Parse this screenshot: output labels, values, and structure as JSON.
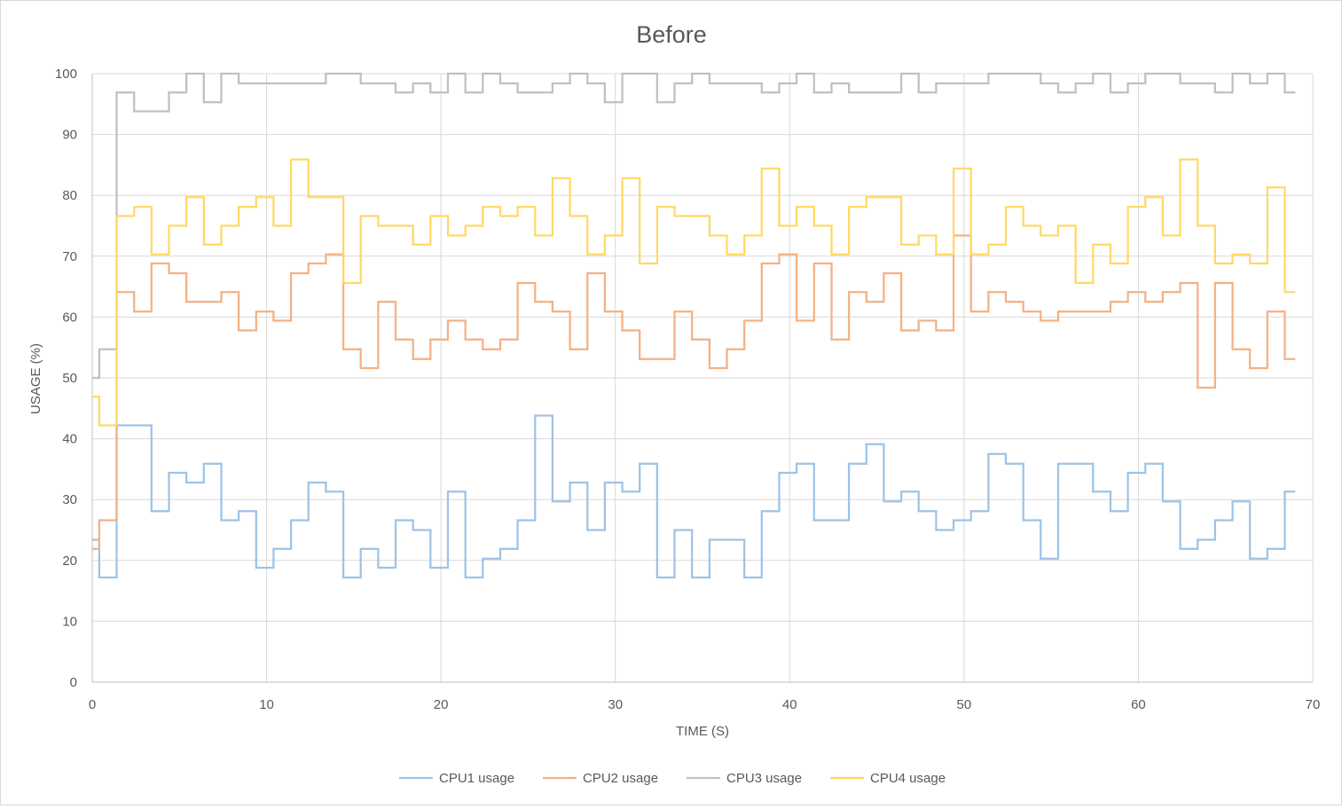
{
  "chart_data": {
    "type": "line",
    "title": "Before",
    "xlabel": "TIME (S)",
    "ylabel": "USAGE (%)",
    "xlim": [
      0,
      70
    ],
    "ylim": [
      0,
      100
    ],
    "x_ticks": [
      0,
      10,
      20,
      30,
      40,
      50,
      60,
      70
    ],
    "y_ticks": [
      0,
      10,
      20,
      30,
      40,
      50,
      60,
      70,
      80,
      90,
      100
    ],
    "grid": true,
    "legend_position": "bottom",
    "line_shape": "step",
    "series": [
      {
        "name": "CPU1 usage",
        "color": "#9dc3e6",
        "x": [
          0,
          0.4,
          1.4,
          3.4,
          4.4,
          5.4,
          6.4,
          7.4,
          8.4,
          9.4,
          10.4,
          11.4,
          12.4,
          13.4,
          14.4,
          15.4,
          16.4,
          17.4,
          18.4,
          19.4,
          20.4,
          21.4,
          22.4,
          23.4,
          24.4,
          25.4,
          26.4,
          27.4,
          28.4,
          29.4,
          30.4,
          31.4,
          32.4,
          33.4,
          34.4,
          35.4,
          36.4,
          37.4,
          38.4,
          39.4,
          40.4,
          41.4,
          42.4,
          43.4,
          44.4,
          45.4,
          46.4,
          47.4,
          48.4,
          49.4,
          50.4,
          51.4,
          52.4,
          53.4,
          54.4,
          55.4,
          56.4,
          57.4,
          58.4,
          59.4,
          60.4,
          61.4,
          62.4,
          63.4,
          64.4,
          65.4,
          66.4,
          67.4,
          68.4,
          69.0
        ],
        "values": [
          23.4,
          17.2,
          42.2,
          28.1,
          34.4,
          32.8,
          35.9,
          26.6,
          28.1,
          18.8,
          21.9,
          26.6,
          32.8,
          31.3,
          17.2,
          21.9,
          18.8,
          26.6,
          25.0,
          18.8,
          31.3,
          17.2,
          20.3,
          21.9,
          26.6,
          43.8,
          29.7,
          32.8,
          25.0,
          32.8,
          31.3,
          35.9,
          17.2,
          25.0,
          17.2,
          23.4,
          23.4,
          17.2,
          28.1,
          34.4,
          35.9,
          26.6,
          26.6,
          35.9,
          39.1,
          29.7,
          31.3,
          28.1,
          25.0,
          26.6,
          28.1,
          37.5,
          35.9,
          26.6,
          20.3,
          35.9,
          35.9,
          31.3,
          28.1,
          34.4,
          35.9,
          29.7,
          21.9,
          23.4,
          26.6,
          29.7,
          20.3,
          21.9,
          31.3,
          31.3
        ]
      },
      {
        "name": "CPU2 usage",
        "color": "#f4b183",
        "x": [
          0,
          0.4,
          1.4,
          2.4,
          3.4,
          4.4,
          5.4,
          6.4,
          7.4,
          8.4,
          9.4,
          10.4,
          11.4,
          12.4,
          13.4,
          14.4,
          15.4,
          16.4,
          17.4,
          18.4,
          19.4,
          20.4,
          21.4,
          22.4,
          23.4,
          24.4,
          25.4,
          26.4,
          27.4,
          28.4,
          29.4,
          30.4,
          31.4,
          32.4,
          33.4,
          34.4,
          35.4,
          36.4,
          37.4,
          38.4,
          39.4,
          40.4,
          41.4,
          42.4,
          43.4,
          44.4,
          45.4,
          46.4,
          47.4,
          48.4,
          49.4,
          50.4,
          51.4,
          52.4,
          53.4,
          54.4,
          55.4,
          56.4,
          57.4,
          58.4,
          59.4,
          60.4,
          61.4,
          62.4,
          63.4,
          64.4,
          65.4,
          66.4,
          67.4,
          68.4,
          69.0
        ],
        "values": [
          21.9,
          26.6,
          64.1,
          60.9,
          68.8,
          67.2,
          62.5,
          62.5,
          64.1,
          57.8,
          60.9,
          59.4,
          67.2,
          68.8,
          70.3,
          54.7,
          51.6,
          62.5,
          56.3,
          53.1,
          56.3,
          59.4,
          56.3,
          54.7,
          56.3,
          65.6,
          62.5,
          60.9,
          54.7,
          67.2,
          60.9,
          57.8,
          53.1,
          53.1,
          60.9,
          56.3,
          51.6,
          54.7,
          59.4,
          68.8,
          70.3,
          59.4,
          68.8,
          56.3,
          64.1,
          62.5,
          67.2,
          57.8,
          59.4,
          57.8,
          73.4,
          60.9,
          64.1,
          62.5,
          60.9,
          59.4,
          60.9,
          60.9,
          60.9,
          62.5,
          64.1,
          62.5,
          64.1,
          65.6,
          48.4,
          65.6,
          54.7,
          51.6,
          60.9,
          53.1,
          53.1
        ]
      },
      {
        "name": "CPU3 usage",
        "color": "#c0c0c0",
        "x": [
          0,
          0.4,
          1.4,
          2.4,
          3.4,
          4.4,
          5.4,
          6.4,
          7.4,
          8.4,
          9.4,
          10.4,
          11.4,
          12.4,
          13.4,
          14.4,
          15.4,
          16.4,
          17.4,
          18.4,
          19.4,
          20.4,
          21.4,
          22.4,
          23.4,
          24.4,
          25.4,
          26.4,
          27.4,
          28.4,
          29.4,
          30.4,
          31.4,
          32.4,
          33.4,
          34.4,
          35.4,
          36.4,
          37.4,
          38.4,
          39.4,
          40.4,
          41.4,
          42.4,
          43.4,
          44.4,
          45.4,
          46.4,
          47.4,
          48.4,
          49.4,
          50.4,
          51.4,
          52.4,
          53.4,
          54.4,
          55.4,
          56.4,
          57.4,
          58.4,
          59.4,
          60.4,
          61.4,
          62.4,
          63.4,
          64.4,
          65.4,
          66.4,
          67.4,
          68.4,
          69.0
        ],
        "values": [
          50.0,
          54.7,
          96.9,
          93.8,
          93.8,
          96.9,
          100,
          95.3,
          100,
          98.4,
          98.4,
          98.4,
          98.4,
          98.4,
          100,
          100,
          98.4,
          98.4,
          96.9,
          98.4,
          96.9,
          100,
          96.9,
          100,
          98.4,
          96.9,
          96.9,
          98.4,
          100,
          98.4,
          95.3,
          100,
          100,
          95.3,
          98.4,
          100,
          98.4,
          98.4,
          98.4,
          96.9,
          98.4,
          100,
          96.9,
          98.4,
          96.9,
          96.9,
          96.9,
          100,
          96.9,
          98.4,
          98.4,
          98.4,
          100,
          100,
          100,
          98.4,
          96.9,
          98.4,
          100,
          96.9,
          98.4,
          100,
          100,
          98.4,
          98.4,
          96.9,
          100,
          98.4,
          100,
          96.9,
          96.9
        ]
      },
      {
        "name": "CPU4 usage",
        "color": "#ffd966",
        "x": [
          0,
          0.4,
          1.4,
          2.4,
          3.4,
          4.4,
          5.4,
          6.4,
          7.4,
          8.4,
          9.4,
          10.4,
          11.4,
          12.4,
          13.4,
          14.4,
          15.4,
          16.4,
          17.4,
          18.4,
          19.4,
          20.4,
          21.4,
          22.4,
          23.4,
          24.4,
          25.4,
          26.4,
          27.4,
          28.4,
          29.4,
          30.4,
          31.4,
          32.4,
          33.4,
          34.4,
          35.4,
          36.4,
          37.4,
          38.4,
          39.4,
          40.4,
          41.4,
          42.4,
          43.4,
          44.4,
          45.4,
          46.4,
          47.4,
          48.4,
          49.4,
          50.4,
          51.4,
          52.4,
          53.4,
          54.4,
          55.4,
          56.4,
          57.4,
          58.4,
          59.4,
          60.4,
          61.4,
          62.4,
          63.4,
          64.4,
          65.4,
          66.4,
          67.4,
          68.4,
          69.0
        ],
        "values": [
          46.9,
          42.2,
          76.6,
          78.1,
          70.3,
          75.0,
          79.7,
          71.9,
          75.0,
          78.1,
          79.7,
          75.0,
          85.9,
          79.7,
          79.7,
          65.6,
          76.6,
          75.0,
          75.0,
          71.9,
          76.6,
          73.4,
          75.0,
          78.1,
          76.6,
          78.1,
          73.4,
          82.8,
          76.6,
          70.3,
          73.4,
          82.8,
          68.8,
          78.1,
          76.6,
          76.6,
          73.4,
          70.3,
          73.4,
          84.4,
          75.0,
          78.1,
          75.0,
          70.3,
          78.1,
          79.7,
          79.7,
          71.9,
          73.4,
          70.3,
          84.4,
          70.3,
          71.9,
          78.1,
          75.0,
          73.4,
          75.0,
          65.6,
          71.9,
          68.8,
          78.1,
          79.7,
          73.4,
          85.9,
          75.0,
          68.8,
          70.3,
          68.8,
          81.3,
          64.1,
          64.1
        ]
      }
    ]
  }
}
